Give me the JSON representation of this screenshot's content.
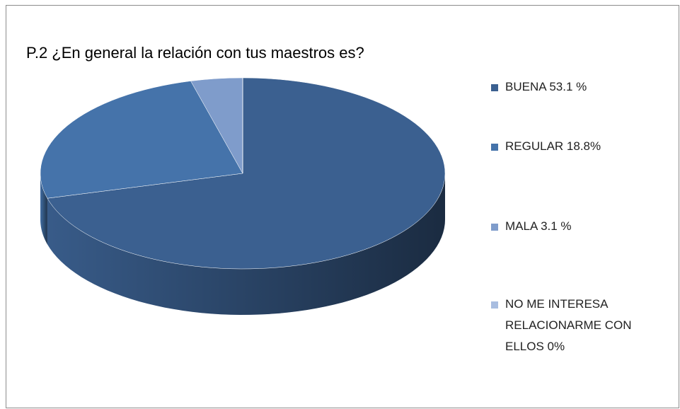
{
  "chart_data": {
    "type": "pie3d",
    "title": "P.2 ¿En general la relación con tus maestros es?",
    "categories": [
      "BUENA  53.1  %",
      "REGULAR   18.8%",
      "MALA  3.1 %",
      "NO ME INTERESA RELACIONARME CON ELLOS  0%"
    ],
    "values": [
      53.1,
      18.8,
      3.1,
      0
    ],
    "colors": [
      "#3b6090",
      "#4573aa",
      "#7f9ccb",
      "#a8bde0"
    ],
    "legend": "right"
  }
}
